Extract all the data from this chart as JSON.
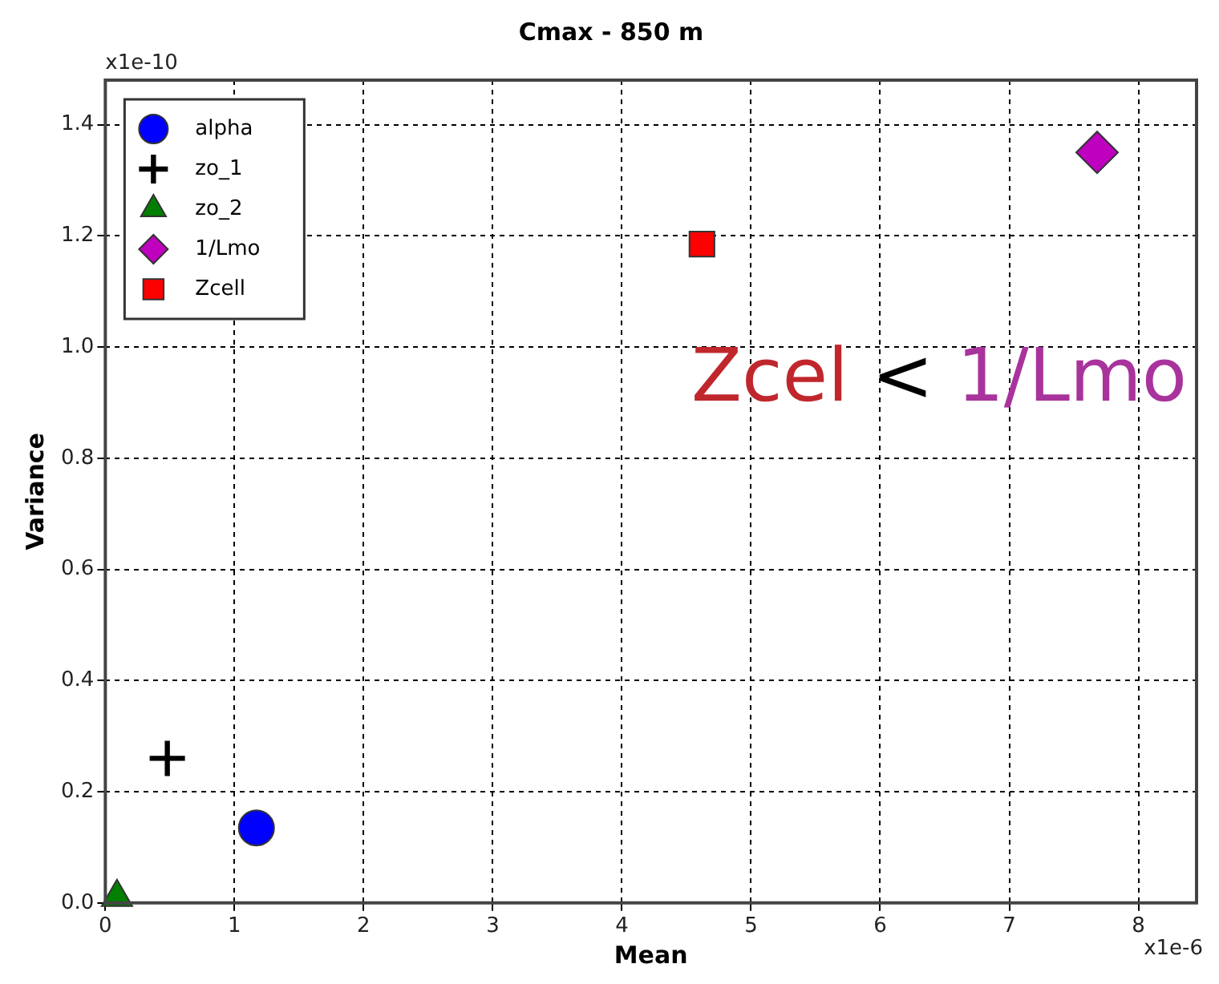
{
  "chart_data": {
    "type": "scatter",
    "title": "Cmax - 850 m",
    "xlabel": "Mean",
    "ylabel": "Variance",
    "xlim": [
      0,
      8.45
    ],
    "xticks": [
      0,
      1,
      2,
      3,
      4,
      5,
      6,
      7,
      8
    ],
    "ylim": [
      0,
      1.48
    ],
    "yticks": [
      {
        "value": 0,
        "label": "0.0"
      },
      {
        "value": 0.2,
        "label": "0.2"
      },
      {
        "value": 0.4,
        "label": "0.4"
      },
      {
        "value": 0.6,
        "label": "0.6"
      },
      {
        "value": 0.8,
        "label": "0.8"
      },
      {
        "value": 1,
        "label": "1.0"
      },
      {
        "value": 1.2,
        "label": "1.2"
      },
      {
        "value": 1.4,
        "label": "1.4"
      }
    ],
    "grid": true,
    "legend": "top left",
    "series": [
      {
        "name": "alpha",
        "color": "#0000ff",
        "marker": "circle",
        "x": [
          1.17
        ],
        "values": [
          0.135
        ]
      },
      {
        "name": "zo_1",
        "color": "#000000",
        "marker": "cross",
        "x": [
          0.48
        ],
        "values": [
          0.26
        ]
      },
      {
        "name": "zo_2",
        "color": "#007f00",
        "marker": "triangle",
        "x": [
          0.09
        ],
        "values": [
          0.01
        ]
      },
      {
        "name": "1/Lmo",
        "color": "#bf00bf",
        "marker": "diamond",
        "x": [
          7.68
        ],
        "values": [
          1.35
        ]
      },
      {
        "name": "Zcell",
        "color": "#ff0000",
        "marker": "square",
        "x": [
          4.62
        ],
        "values": [
          1.185
        ]
      }
    ],
    "annotations": [
      "x1e-10",
      "x1e-6",
      "Zcel < 1/Lmo"
    ]
  }
}
